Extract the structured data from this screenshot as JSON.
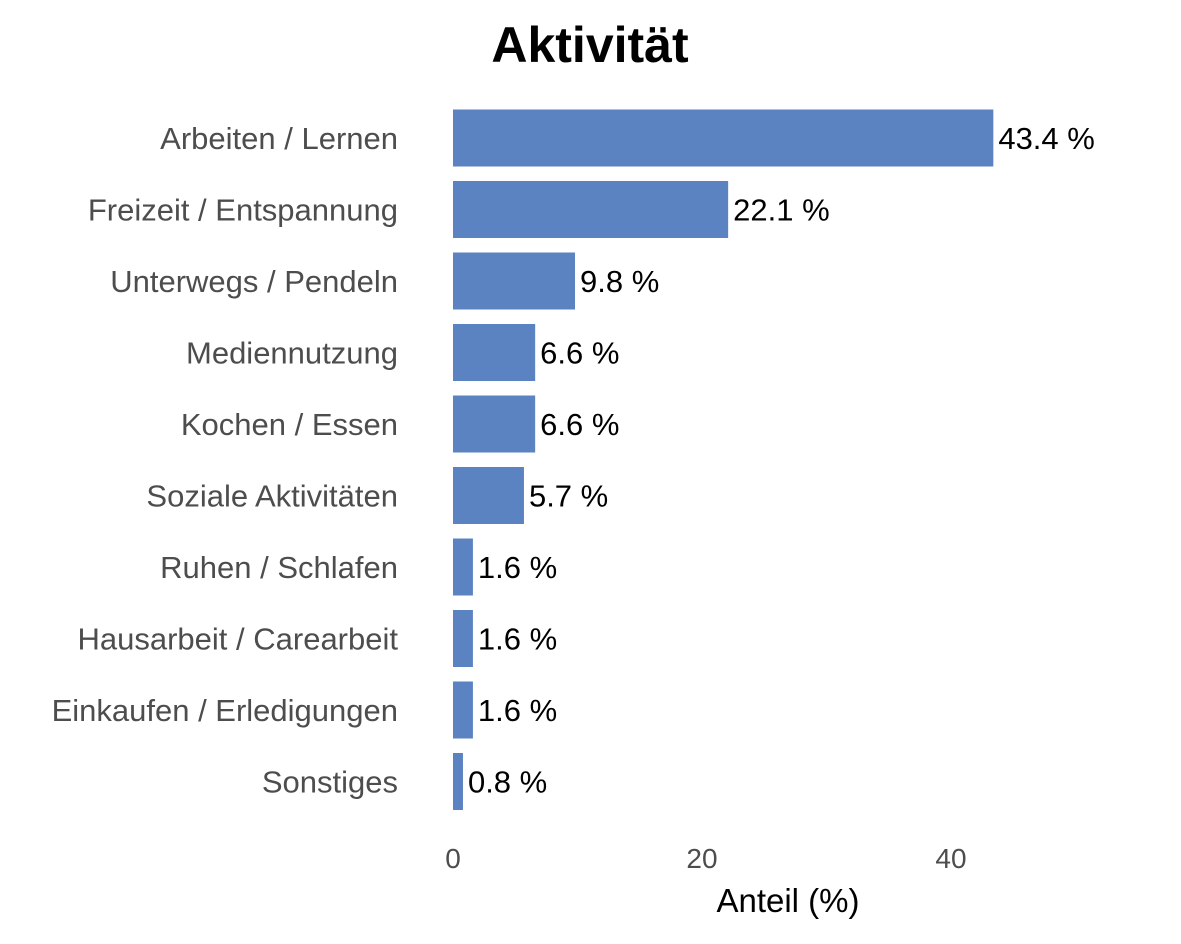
{
  "chart_data": {
    "type": "bar",
    "orientation": "horizontal",
    "title": "Aktivität",
    "xlabel": "Anteil (%)",
    "ylabel": "",
    "categories": [
      "Arbeiten / Lernen",
      "Freizeit / Entspannung",
      "Unterwegs / Pendeln",
      "Mediennutzung",
      "Kochen / Essen",
      "Soziale Aktivitäten",
      "Ruhen / Schlafen",
      "Hausarbeit / Carearbeit",
      "Einkaufen / Erledigungen",
      "Sonstiges"
    ],
    "values": [
      43.4,
      22.1,
      9.8,
      6.6,
      6.6,
      5.7,
      1.6,
      1.6,
      1.6,
      0.8
    ],
    "value_labels": [
      "43.4 %",
      "22.1 %",
      "9.8 %",
      "6.6 %",
      "6.6 %",
      "5.7 %",
      "1.6 %",
      "1.6 %",
      "1.6 %",
      "0.8 %"
    ],
    "x_ticks": [
      0,
      20,
      40
    ],
    "x_tick_labels": [
      "0",
      "20",
      "40"
    ],
    "xlim": [
      0,
      58
    ],
    "grid": false,
    "legend": "none",
    "bar_color": "#5b82c1"
  }
}
